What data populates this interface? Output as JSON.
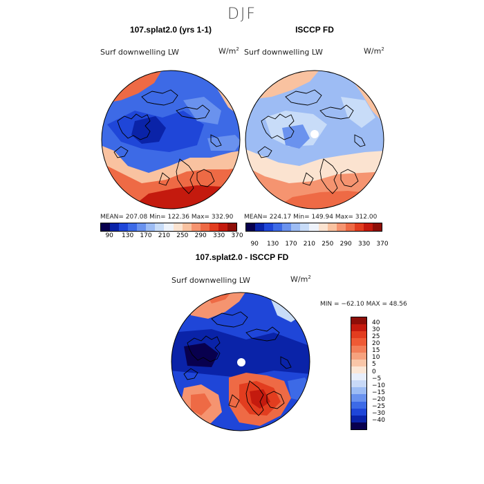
{
  "figure": {
    "season": "DJF",
    "panels": [
      {
        "title": "107.splat2.0 (yrs 1-1)",
        "variable": "Surf downwelling LW",
        "units_base": "W/m",
        "units_exp": "2",
        "stats": "MEAN= 207.08   Min= 122.36   Max= 332.90"
      },
      {
        "title": "ISCCP FD",
        "variable": "Surf downwelling LW",
        "units_base": "W/m",
        "units_exp": "2",
        "stats": "MEAN= 224.17   Min= 149.94   Max= 312.00"
      },
      {
        "title": "107.splat2.0 - ISCCP FD",
        "variable": "Surf downwelling LW",
        "units_base": "W/m",
        "units_exp": "2",
        "stats": "MIN = −62.10 MAX =  48.56"
      }
    ],
    "abs_colorbar": {
      "colors": [
        "#08004e",
        "#0a23a8",
        "#1f46d8",
        "#3d6ae6",
        "#6a92ee",
        "#9dbcf4",
        "#c8dcf8",
        "#eef3fb",
        "#fbe3d0",
        "#f9c2a0",
        "#f59470",
        "#ee6a45",
        "#e23d1f",
        "#c41a0e",
        "#8e0e08"
      ],
      "ticks": [
        "90",
        "130",
        "170",
        "210",
        "250",
        "290",
        "330",
        "370"
      ]
    },
    "diff_colorbar": {
      "colors": [
        "#8e0e08",
        "#c41a0e",
        "#e23d1f",
        "#ee5a35",
        "#f27e58",
        "#f6a27e",
        "#f9c6a8",
        "#fbe6d6",
        "#e8eefb",
        "#c8d9f7",
        "#9dbcf4",
        "#6a92ee",
        "#3d6ae6",
        "#1f46d8",
        "#0a23a8",
        "#08004e"
      ],
      "labels": [
        "40",
        "30",
        "25",
        "20",
        "15",
        "10",
        "5",
        "0",
        "−5",
        "−10",
        "−15",
        "−20",
        "−25",
        "−30",
        "−40"
      ]
    },
    "map_colors": {
      "deep_blue": "#0a23a8",
      "mid_blue": "#3d6ae6",
      "light_blue": "#9dbcf4",
      "pale_blue": "#c8dcf8",
      "pale_red": "#f9c2a0",
      "mid_red": "#ee6a45",
      "deep_red": "#c41a0e",
      "dark_red": "#8e0e08"
    }
  }
}
